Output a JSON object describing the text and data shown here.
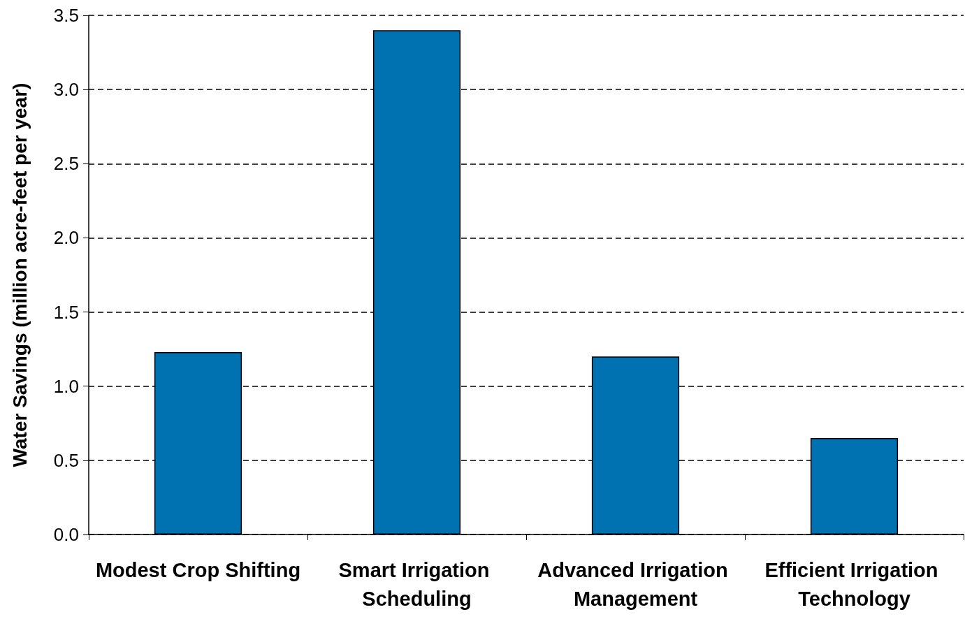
{
  "chart_data": {
    "type": "bar",
    "ylabel": "Water Savings (million acre-feet per year)",
    "categories": [
      "Modest Crop Shifting",
      "Smart Irrigation Scheduling",
      "Advanced Irrigation Management",
      "Efficient Irrigation Technology"
    ],
    "values": [
      1.23,
      3.4,
      1.2,
      0.65
    ],
    "color": "#0071b1",
    "ylim": [
      0,
      3.5
    ],
    "yticks": [
      {
        "value": 0,
        "label": "0.0"
      },
      {
        "value": 0.5,
        "label": "0.5"
      },
      {
        "value": 1,
        "label": "1.0"
      },
      {
        "value": 1.5,
        "label": "1.5"
      },
      {
        "value": 2,
        "label": "2.0"
      },
      {
        "value": 2.5,
        "label": "2.5"
      },
      {
        "value": 3,
        "label": "3.0"
      },
      {
        "value": 3.5,
        "label": "3.5"
      }
    ],
    "grid": "y"
  }
}
